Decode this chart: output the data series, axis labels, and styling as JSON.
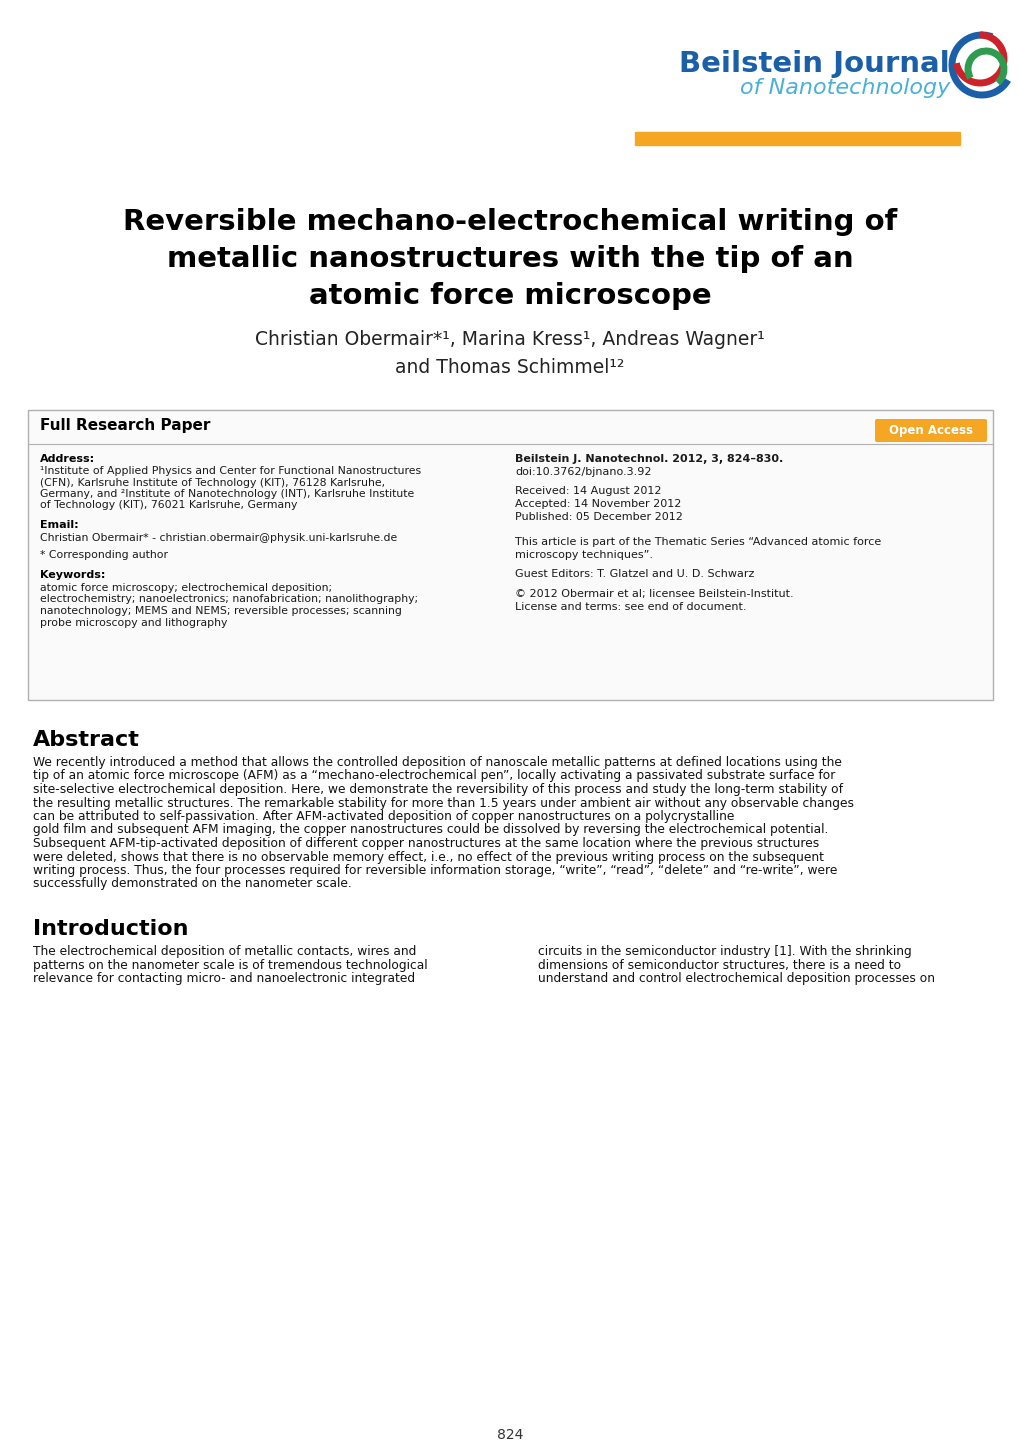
{
  "bg_color": "#ffffff",
  "journal_name": "Beilstein Journal",
  "journal_subtitle": "of Nanotechnology",
  "journal_name_color": "#1a5fa8",
  "journal_subtitle_color": "#4ab0d9",
  "orange_bar_color": "#f5a623",
  "logo_blue": "#1a5fa8",
  "logo_red": "#cc2229",
  "logo_green": "#2e9b4e",
  "title_line1": "Reversible mechano-electrochemical writing of",
  "title_line2": "metallic nanostructures with the tip of an",
  "title_line3": "atomic force microscope",
  "author_line1": "Christian Obermair*¹, Marina Kress¹, Andreas Wagner¹",
  "author_line2": "and Thomas Schimmel¹²",
  "box_label": "Full Research Paper",
  "open_access_label": "Open Access",
  "addr_title": "Address:",
  "addr_body": "¹Institute of Applied Physics and Center for Functional Nanostructures\n(CFN), Karlsruhe Institute of Technology (KIT), 76128 Karlsruhe,\nGermany, and ²Institute of Nanotechnology (INT), Karlsruhe Institute\nof Technology (KIT), 76021 Karlsruhe, Germany",
  "email_title": "Email:",
  "email_body": "Christian Obermair* - christian.obermair@physik.uni-karlsruhe.de",
  "corr_note": "* Corresponding author",
  "kw_title": "Keywords:",
  "kw_body": "atomic force microscopy; electrochemical deposition;\nelectrochemistry; nanoelectronics; nanofabrication; nanolithography;\nnanotechnology; MEMS and NEMS; reversible processes; scanning\nprobe microscopy and lithography",
  "citation": "Beilstein J. Nanotechnol. 2012, 3, 824–830.",
  "doi": "doi:10.3762/bjnano.3.92",
  "received": "Received: 14 August 2012",
  "accepted": "Accepted: 14 November 2012",
  "published": "Published: 05 December 2012",
  "thematic_line1": "This article is part of the Thematic Series “Advanced atomic force",
  "thematic_line2": "microscopy techniques”.",
  "guest_editors": "Guest Editors: T. Glatzel and U. D. Schwarz",
  "copyright": "© 2012 Obermair et al; licensee Beilstein-Institut.",
  "license": "License and terms: see end of document.",
  "abstract_title": "Abstract",
  "abstract_lines": [
    "We recently introduced a method that allows the controlled deposition of nanoscale metallic patterns at defined locations using the",
    "tip of an atomic force microscope (AFM) as a “mechano-electrochemical pen”, locally activating a passivated substrate surface for",
    "site-selective electrochemical deposition. Here, we demonstrate the reversibility of this process and study the long-term stability of",
    "the resulting metallic structures. The remarkable stability for more than 1.5 years under ambient air without any observable changes",
    "can be attributed to self-passivation. After AFM-activated deposition of copper nanostructures on a polycrystalline",
    "gold film and subsequent AFM imaging, the copper nanostructures could be dissolved by reversing the electrochemical potential.",
    "Subsequent AFM-tip-activated deposition of different copper nanostructures at the same location where the previous structures",
    "were deleted, shows that there is no observable memory effect, i.e., no effect of the previous writing process on the subsequent",
    "writing process. Thus, the four processes required for reversible information storage, “write”, “read”, “delete” and “re-write”, were",
    "successfully demonstrated on the nanometer scale."
  ],
  "intro_title": "Introduction",
  "intro_left_lines": [
    "The electrochemical deposition of metallic contacts, wires and",
    "patterns on the nanometer scale is of tremendous technological",
    "relevance for contacting micro- and nanoelectronic integrated"
  ],
  "intro_right_lines": [
    "circuits in the semiconductor industry [1]. With the shrinking",
    "dimensions of semiconductor structures, there is a need to",
    "understand and control electrochemical deposition processes on"
  ],
  "page_number": "824"
}
